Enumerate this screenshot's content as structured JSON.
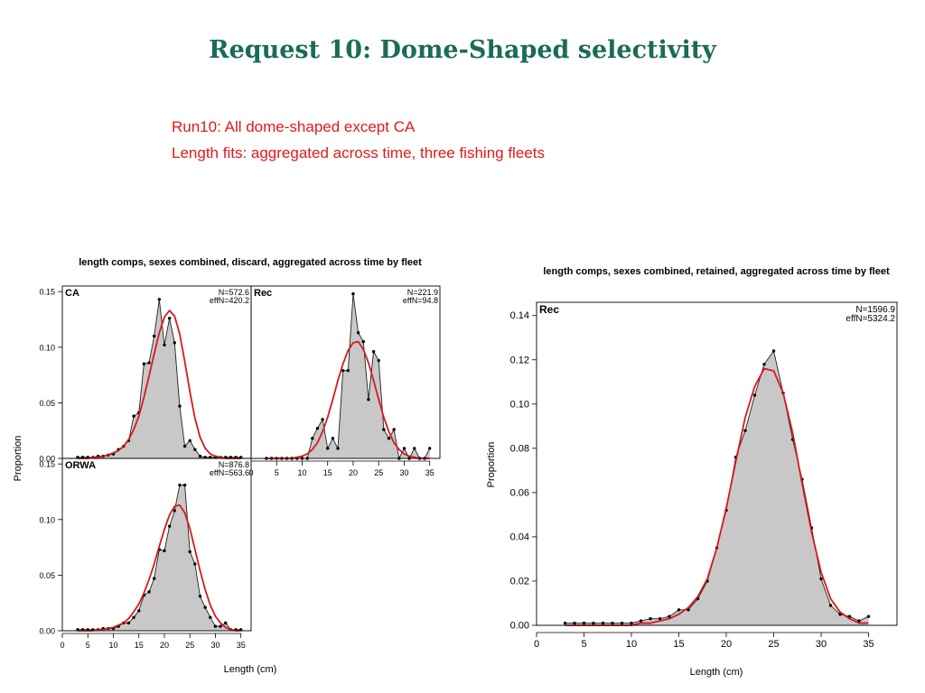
{
  "slide": {
    "title": "Request 10: Dome-Shaped selectivity",
    "subtitle_lines": [
      "Run10: All dome-shaped except CA",
      "Length fits: aggregated across time, three fishing fleets"
    ]
  },
  "colors": {
    "title": "#1a6b58",
    "subtitle": "#e0191c",
    "fill": "#c8c8c8",
    "observed_line": "#222222",
    "fit_line": "#d7191c"
  },
  "chart_data": [
    {
      "type": "area",
      "figure_title": "length comps, sexes combined, discard, aggregated across time by fleet",
      "panel": "CA",
      "n_label": "N=572.6",
      "effn_label": "effN=420.2",
      "ylabel": "Proportion",
      "xlabel": "",
      "xlim": [
        0,
        37
      ],
      "ylim": [
        0,
        0.155
      ],
      "yticks": [
        "0.00",
        "0.05",
        "0.10",
        "0.15"
      ],
      "xticks": [],
      "grid": false,
      "series": [
        {
          "role": "observed",
          "x": [
            3,
            4,
            5,
            6,
            7,
            8,
            9,
            10,
            11,
            12,
            13,
            14,
            15,
            16,
            17,
            18,
            19,
            20,
            21,
            22,
            23,
            24,
            25,
            26,
            27,
            28,
            29,
            30,
            31,
            32,
            33,
            34,
            35
          ],
          "values": [
            0.001,
            0.001,
            0.001,
            0.001,
            0.002,
            0.002,
            0.003,
            0.004,
            0.008,
            0.011,
            0.016,
            0.038,
            0.041,
            0.085,
            0.086,
            0.11,
            0.143,
            0.102,
            0.126,
            0.104,
            0.047,
            0.011,
            0.016,
            0.008,
            0.002,
            0.001,
            0.001,
            0.001,
            0.001,
            0.001,
            0.001,
            0.001,
            0.001
          ]
        },
        {
          "role": "fit",
          "x": [
            3,
            4,
            5,
            6,
            7,
            8,
            9,
            10,
            11,
            12,
            13,
            14,
            15,
            16,
            17,
            18,
            19,
            20,
            21,
            22,
            23,
            24,
            25,
            26,
            27,
            28,
            29,
            30,
            31,
            32,
            33,
            34,
            35
          ],
          "values": [
            0.0,
            0.0,
            0.0,
            0.001,
            0.001,
            0.002,
            0.003,
            0.005,
            0.007,
            0.011,
            0.017,
            0.026,
            0.038,
            0.055,
            0.074,
            0.094,
            0.113,
            0.127,
            0.133,
            0.128,
            0.112,
            0.087,
            0.06,
            0.036,
            0.019,
            0.009,
            0.004,
            0.002,
            0.001,
            0.0,
            0.0,
            0.0,
            0.0
          ]
        }
      ]
    },
    {
      "type": "area",
      "panel": "Rec",
      "n_label": "N=221.9",
      "effn_label": "effN=94.8",
      "xlabel": "",
      "xlim": [
        0,
        37
      ],
      "ylim": [
        0,
        0.155
      ],
      "xticks": [
        "0",
        "5",
        "10",
        "15",
        "20",
        "25",
        "30",
        "35"
      ],
      "grid": false,
      "series": [
        {
          "role": "observed",
          "x": [
            3,
            4,
            5,
            6,
            7,
            8,
            9,
            10,
            11,
            12,
            13,
            14,
            15,
            16,
            17,
            18,
            19,
            20,
            21,
            22,
            23,
            24,
            25,
            26,
            27,
            28,
            29,
            30,
            31,
            32,
            33,
            34,
            35
          ],
          "values": [
            0,
            0,
            0,
            0,
            0,
            0,
            0,
            0,
            0,
            0.018,
            0.027,
            0.035,
            0.009,
            0.018,
            0.009,
            0.079,
            0.079,
            0.148,
            0.113,
            0.105,
            0.053,
            0.096,
            0.088,
            0.026,
            0.018,
            0.026,
            0,
            0.009,
            0,
            0.009,
            0,
            0,
            0.009
          ]
        },
        {
          "role": "fit",
          "x": [
            3,
            4,
            5,
            6,
            7,
            8,
            9,
            10,
            11,
            12,
            13,
            14,
            15,
            16,
            17,
            18,
            19,
            20,
            21,
            22,
            23,
            24,
            25,
            26,
            27,
            28,
            29,
            30,
            31,
            32,
            33,
            34,
            35
          ],
          "values": [
            0.0,
            0.0,
            0.0,
            0.0,
            0.0,
            0.0,
            0.001,
            0.002,
            0.004,
            0.008,
            0.014,
            0.024,
            0.037,
            0.053,
            0.07,
            0.085,
            0.097,
            0.104,
            0.105,
            0.098,
            0.086,
            0.07,
            0.053,
            0.037,
            0.024,
            0.014,
            0.008,
            0.004,
            0.002,
            0.001,
            0.0,
            0.0,
            0.0
          ]
        }
      ]
    },
    {
      "type": "area",
      "panel": "ORWA",
      "n_label": "N=876.8",
      "effn_label": "effN=563.6",
      "xlabel": "Length (cm)",
      "xlim": [
        0,
        37
      ],
      "ylim": [
        0,
        0.155
      ],
      "yticks": [
        "0.00",
        "0.05",
        "0.10",
        "0.15"
      ],
      "xticks": [
        "0",
        "5",
        "10",
        "15",
        "20",
        "25",
        "30",
        "35"
      ],
      "grid": false,
      "series": [
        {
          "role": "observed",
          "x": [
            3,
            4,
            5,
            6,
            7,
            8,
            9,
            10,
            11,
            12,
            13,
            14,
            15,
            16,
            17,
            18,
            19,
            20,
            21,
            22,
            23,
            24,
            25,
            26,
            27,
            28,
            29,
            30,
            31,
            32,
            33,
            34,
            35
          ],
          "values": [
            0.001,
            0.001,
            0.001,
            0.001,
            0.001,
            0.002,
            0.002,
            0.002,
            0.004,
            0.007,
            0.007,
            0.012,
            0.018,
            0.032,
            0.035,
            0.047,
            0.073,
            0.072,
            0.094,
            0.108,
            0.131,
            0.131,
            0.071,
            0.06,
            0.031,
            0.021,
            0.012,
            0.004,
            0.004,
            0.007,
            0.001,
            0.001,
            0.001
          ]
        },
        {
          "role": "fit",
          "x": [
            3,
            4,
            5,
            6,
            7,
            8,
            9,
            10,
            11,
            12,
            13,
            14,
            15,
            16,
            17,
            18,
            19,
            20,
            21,
            22,
            23,
            24,
            25,
            26,
            27,
            28,
            29,
            30,
            31,
            32,
            33,
            34,
            35
          ],
          "values": [
            0.0,
            0.0,
            0.0,
            0.0,
            0.001,
            0.001,
            0.002,
            0.003,
            0.005,
            0.007,
            0.011,
            0.017,
            0.024,
            0.034,
            0.046,
            0.06,
            0.076,
            0.091,
            0.104,
            0.112,
            0.113,
            0.106,
            0.092,
            0.073,
            0.054,
            0.037,
            0.023,
            0.013,
            0.007,
            0.003,
            0.001,
            0.0,
            0.0
          ]
        }
      ]
    },
    {
      "type": "area",
      "figure_title": "length comps, sexes combined, retained, aggregated across time by fleet",
      "panel": "Rec",
      "n_label": "N=1596.9",
      "effn_label": "effN=5324.2",
      "xlabel": "Length (cm)",
      "ylabel": "Proportion",
      "xlim": [
        0,
        38
      ],
      "ylim": [
        0,
        0.146
      ],
      "yticks": [
        "0.00",
        "0.02",
        "0.04",
        "0.06",
        "0.08",
        "0.10",
        "0.12",
        "0.14"
      ],
      "xticks": [
        "0",
        "5",
        "10",
        "15",
        "20",
        "25",
        "30",
        "35"
      ],
      "grid": false,
      "series": [
        {
          "role": "observed",
          "x": [
            3,
            4,
            5,
            6,
            7,
            8,
            9,
            10,
            11,
            12,
            13,
            14,
            15,
            16,
            17,
            18,
            19,
            20,
            21,
            22,
            23,
            24,
            25,
            26,
            27,
            28,
            29,
            30,
            31,
            32,
            33,
            34,
            35
          ],
          "values": [
            0.001,
            0.001,
            0.001,
            0.001,
            0.001,
            0.001,
            0.001,
            0.001,
            0.002,
            0.003,
            0.003,
            0.004,
            0.007,
            0.007,
            0.012,
            0.02,
            0.035,
            0.052,
            0.076,
            0.088,
            0.104,
            0.118,
            0.124,
            0.105,
            0.084,
            0.066,
            0.044,
            0.021,
            0.009,
            0.005,
            0.004,
            0.002,
            0.004
          ]
        },
        {
          "role": "fit",
          "x": [
            3,
            4,
            5,
            6,
            7,
            8,
            9,
            10,
            11,
            12,
            13,
            14,
            15,
            16,
            17,
            18,
            19,
            20,
            21,
            22,
            23,
            24,
            25,
            26,
            27,
            28,
            29,
            30,
            31,
            32,
            33,
            34,
            35
          ],
          "values": [
            0.0,
            0.0,
            0.0,
            0.0,
            0.0,
            0.0,
            0.0,
            0.0,
            0.001,
            0.001,
            0.002,
            0.003,
            0.005,
            0.008,
            0.013,
            0.021,
            0.035,
            0.053,
            0.074,
            0.094,
            0.108,
            0.116,
            0.115,
            0.105,
            0.087,
            0.064,
            0.042,
            0.024,
            0.012,
            0.006,
            0.003,
            0.001,
            0.001
          ]
        }
      ]
    }
  ]
}
